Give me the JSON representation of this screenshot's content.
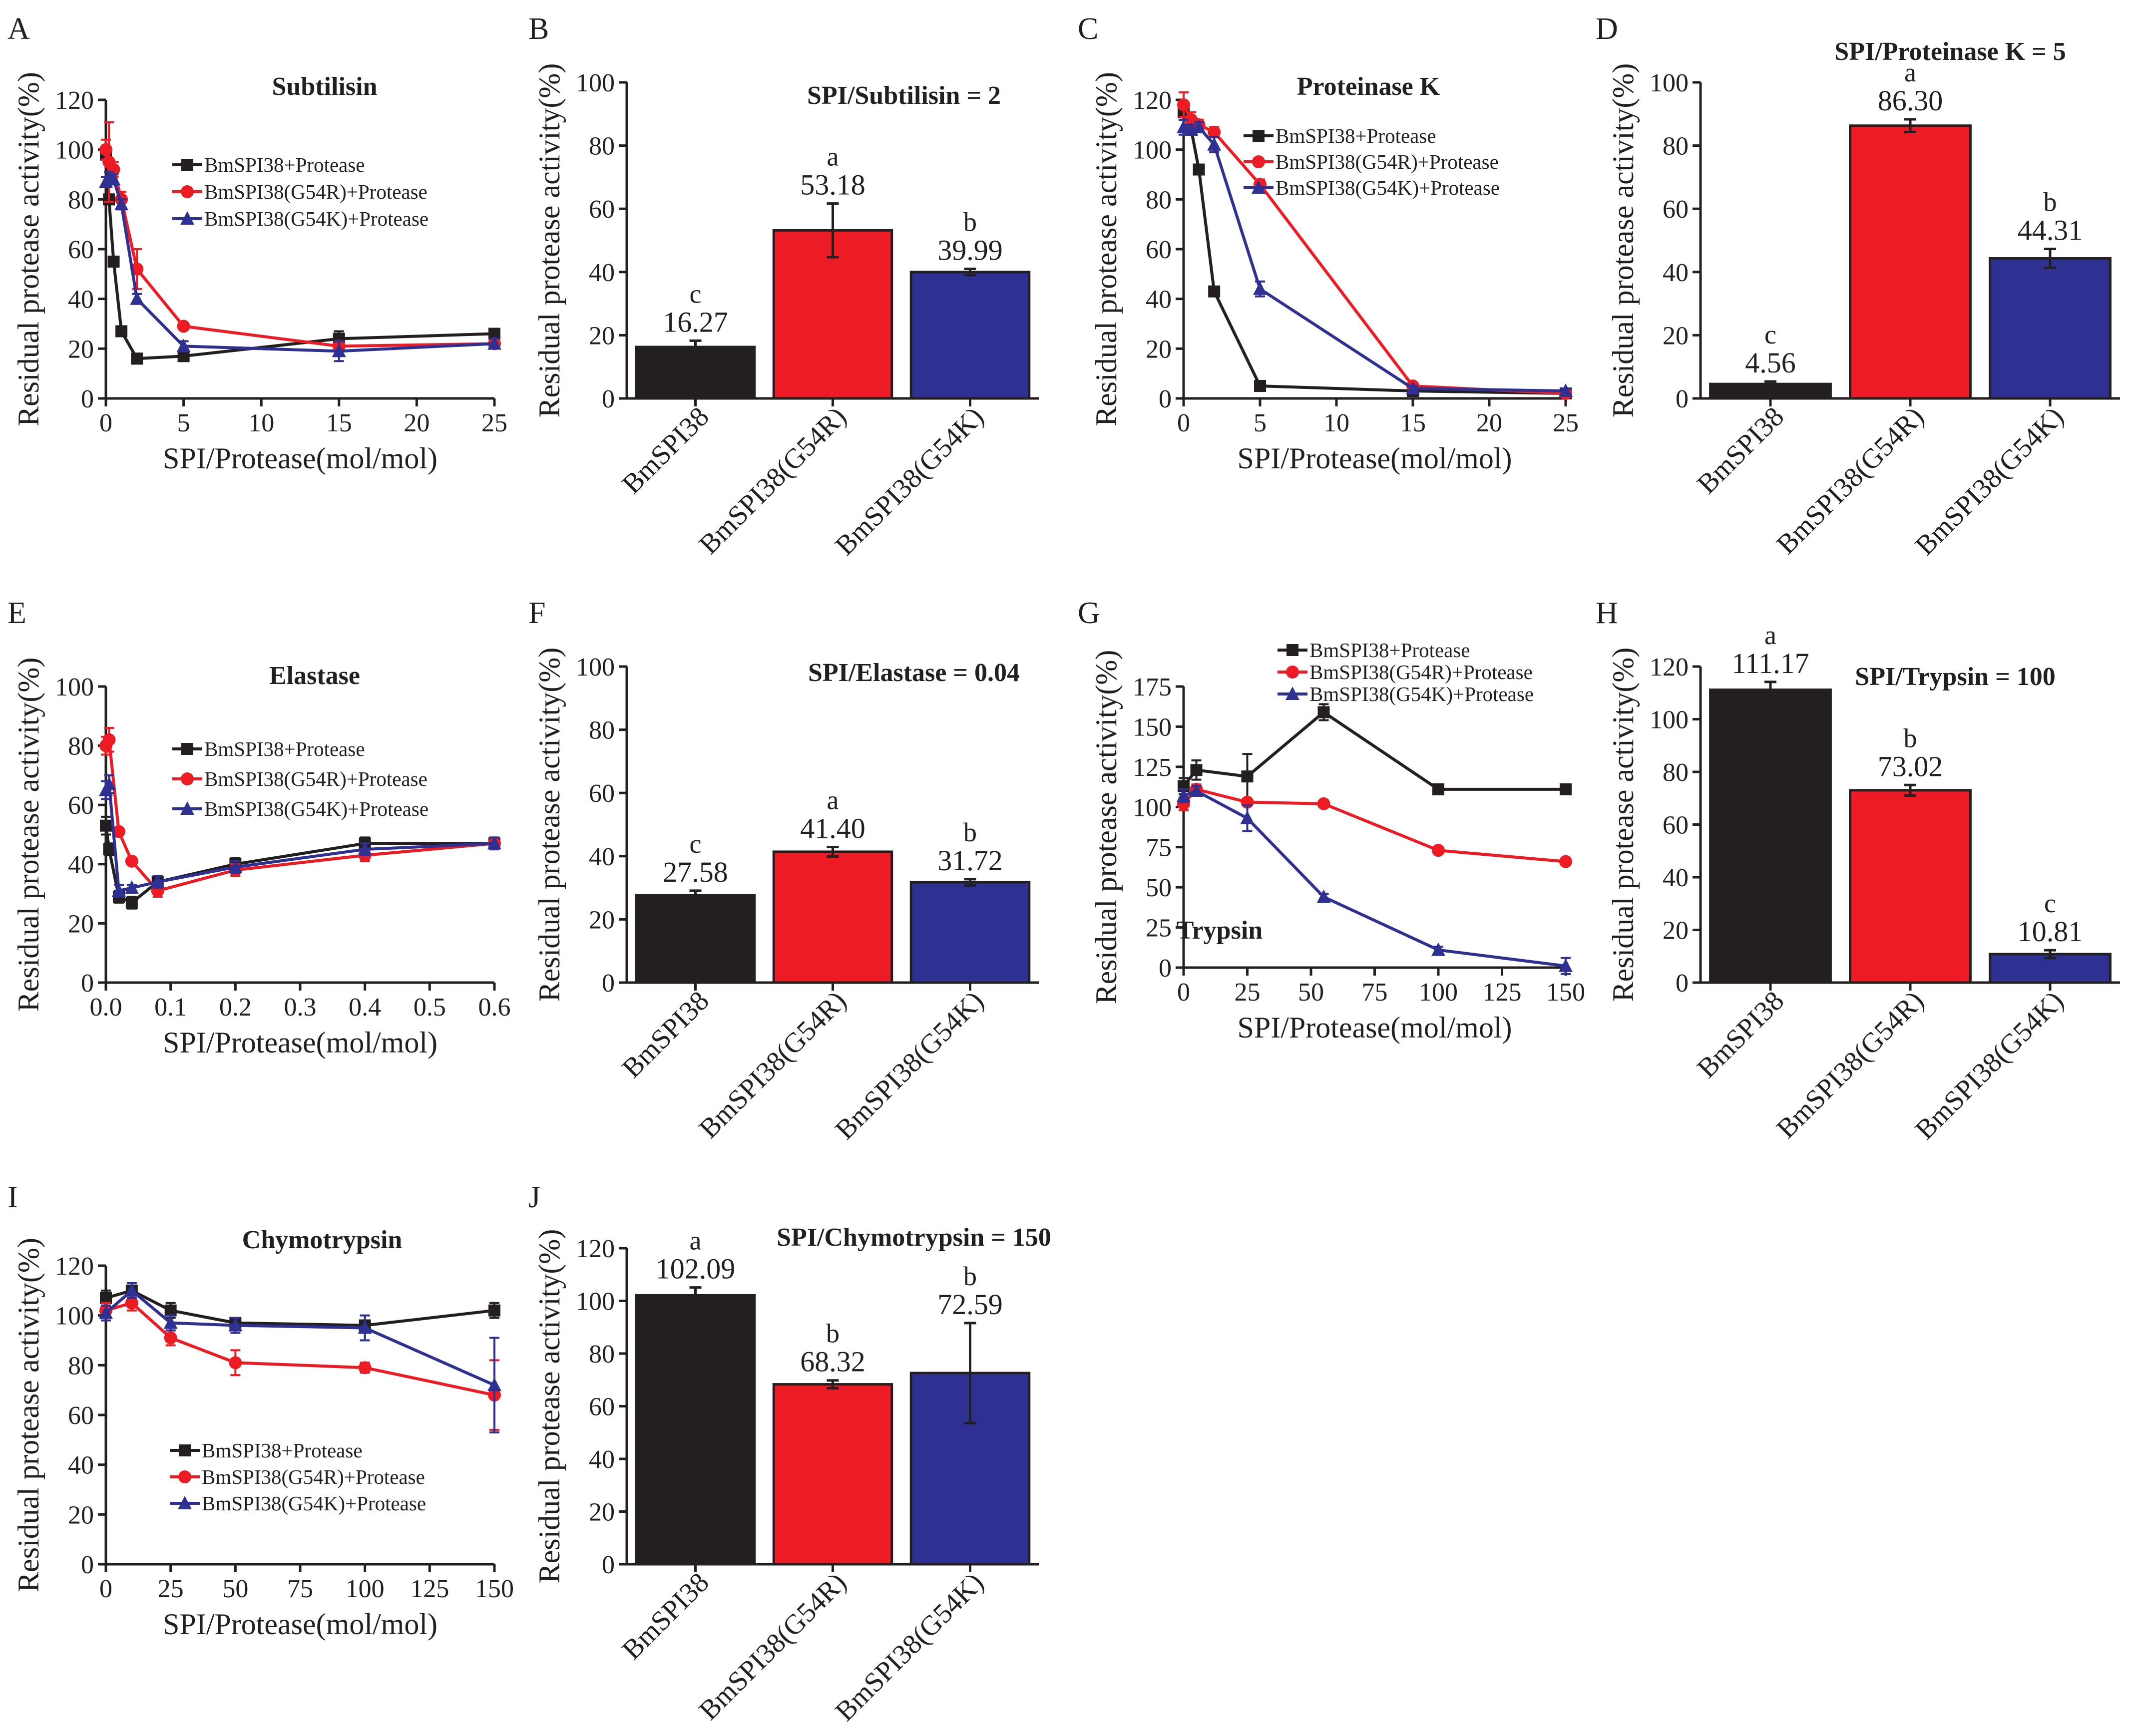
{
  "colors": {
    "black": "#231f20",
    "red": "#ed1c24",
    "blue": "#2e3192"
  },
  "legend": [
    "BmSPI38+Protease",
    "BmSPI38(G54R)+Protease",
    "BmSPI38(G54K)+Protease"
  ],
  "common": {
    "ylabel": "Residual protease activity(%)",
    "xlabel": "SPI/Protease(mol/mol)"
  },
  "chart_data": [
    {
      "panel": "A",
      "type": "line",
      "title": "Subtilisin",
      "xlabel": "SPI/Protease(mol/mol)",
      "ylabel": "Residual protease activity(%)",
      "xlim": [
        0,
        25
      ],
      "ylim": [
        0,
        120
      ],
      "xticks": [
        0,
        5,
        10,
        15,
        20,
        25
      ],
      "yticks": [
        0,
        20,
        40,
        60,
        80,
        100,
        120
      ],
      "series": [
        {
          "name": "BmSPI38+Protease",
          "x": [
            0,
            0.2,
            0.5,
            1,
            2,
            5,
            15,
            25
          ],
          "y": [
            98,
            80,
            55,
            27,
            16,
            17,
            24,
            26
          ],
          "err": [
            2,
            2,
            2,
            2,
            2,
            2,
            3,
            2
          ]
        },
        {
          "name": "BmSPI38(G54R)+Protease",
          "x": [
            0,
            0.2,
            0.5,
            1,
            2,
            5,
            15,
            25
          ],
          "y": [
            100,
            95,
            92,
            80,
            52,
            29,
            21,
            22
          ],
          "err": [
            4,
            16,
            3,
            3,
            8,
            1,
            2,
            2
          ]
        },
        {
          "name": "BmSPI38(G54K)+Protease",
          "x": [
            0,
            0.2,
            0.5,
            1,
            2,
            5,
            15,
            25
          ],
          "y": [
            87,
            89,
            88,
            78,
            40,
            21,
            19,
            22
          ],
          "err": [
            2,
            2,
            2,
            2,
            2,
            2,
            4,
            2
          ]
        }
      ]
    },
    {
      "panel": "B",
      "type": "bar",
      "title": "SPI/Subtilisin = 2",
      "ylabel": "Residual protease activity(%)",
      "ylim": [
        0,
        100
      ],
      "yticks": [
        0,
        20,
        40,
        60,
        80,
        100
      ],
      "categories": [
        "BmSPI38",
        "BmSPI38(G54R)",
        "BmSPI38(G54K)"
      ],
      "values": [
        16.27,
        53.18,
        39.99
      ],
      "labels": [
        "16.27",
        "53.18",
        "39.99"
      ],
      "letters": [
        "c",
        "a",
        "b"
      ],
      "errors": [
        2,
        8.5,
        1
      ]
    },
    {
      "panel": "C",
      "type": "line",
      "title": "Proteinase K",
      "xlabel": "SPI/Protease(mol/mol)",
      "ylabel": "Residual protease activity(%)",
      "xlim": [
        0,
        25
      ],
      "ylim": [
        0,
        120
      ],
      "xticks": [
        0,
        5,
        10,
        15,
        20,
        25
      ],
      "yticks": [
        0,
        20,
        40,
        60,
        80,
        100,
        120
      ],
      "series": [
        {
          "name": "BmSPI38+Protease",
          "x": [
            0,
            0.5,
            1,
            2,
            5,
            15,
            25
          ],
          "y": [
            115,
            108,
            92,
            43,
            5,
            3,
            2
          ],
          "err": [
            3,
            2,
            2,
            1,
            1,
            1,
            1
          ]
        },
        {
          "name": "BmSPI38(G54R)+Protease",
          "x": [
            0,
            0.5,
            1,
            2,
            5,
            15,
            25
          ],
          "y": [
            118,
            112,
            110,
            107,
            86,
            5,
            2
          ],
          "err": [
            5,
            3,
            2,
            2,
            2,
            1,
            1
          ]
        },
        {
          "name": "BmSPI38(G54K)+Protease",
          "x": [
            0,
            0.5,
            1,
            2,
            5,
            15,
            25
          ],
          "y": [
            109,
            108,
            109,
            102,
            44,
            4,
            3
          ],
          "err": [
            3,
            2,
            2,
            3,
            3,
            1,
            1
          ]
        }
      ]
    },
    {
      "panel": "D",
      "type": "bar",
      "title": "SPI/Proteinase K = 5",
      "ylabel": "Residual protease activity(%)",
      "ylim": [
        0,
        100
      ],
      "yticks": [
        0,
        20,
        40,
        60,
        80,
        100
      ],
      "categories": [
        "BmSPI38",
        "BmSPI38(G54R)",
        "BmSPI38(G54K)"
      ],
      "values": [
        4.56,
        86.3,
        44.31
      ],
      "labels": [
        "4.56",
        "86.30",
        "44.31"
      ],
      "letters": [
        "c",
        "a",
        "b"
      ],
      "errors": [
        0.8,
        2,
        3
      ]
    },
    {
      "panel": "E",
      "type": "line",
      "title": "Elastase",
      "xlabel": "SPI/Protease(mol/mol)",
      "ylabel": "Residual protease activity(%)",
      "xlim": [
        0,
        0.6
      ],
      "ylim": [
        0,
        100
      ],
      "xticks": [
        0,
        0.1,
        0.2,
        0.3,
        0.4,
        0.5,
        0.6
      ],
      "xticklabels": [
        "0.0",
        "0.1",
        "0.2",
        "0.3",
        "0.4",
        "0.5",
        "0.6"
      ],
      "yticks": [
        0,
        20,
        40,
        60,
        80,
        100
      ],
      "series": [
        {
          "name": "BmSPI38+Protease",
          "x": [
            0,
            0.005,
            0.02,
            0.04,
            0.08,
            0.2,
            0.4,
            0.6
          ],
          "y": [
            53,
            45,
            29,
            27,
            34,
            40,
            47,
            47
          ],
          "err": [
            3,
            2,
            2,
            2,
            2,
            2,
            2,
            1
          ]
        },
        {
          "name": "BmSPI38(G54R)+Protease",
          "x": [
            0,
            0.005,
            0.02,
            0.04,
            0.08,
            0.2,
            0.4,
            0.6
          ],
          "y": [
            80,
            82,
            51,
            41,
            31,
            38,
            43,
            47
          ],
          "err": [
            3,
            4,
            1,
            1,
            2,
            2,
            2,
            2
          ]
        },
        {
          "name": "BmSPI38(G54K)+Protease",
          "x": [
            0,
            0.005,
            0.02,
            0.04,
            0.08,
            0.2,
            0.4,
            0.6
          ],
          "y": [
            65,
            67,
            31,
            32,
            34,
            39,
            45,
            47
          ],
          "err": [
            3,
            3,
            2,
            1,
            2,
            2,
            2,
            2
          ]
        }
      ]
    },
    {
      "panel": "F",
      "type": "bar",
      "title": "SPI/Elastase = 0.04",
      "ylabel": "Residual protease activity(%)",
      "ylim": [
        0,
        100
      ],
      "yticks": [
        0,
        20,
        40,
        60,
        80,
        100
      ],
      "categories": [
        "BmSPI38",
        "BmSPI38(G54R)",
        "BmSPI38(G54K)"
      ],
      "values": [
        27.58,
        41.4,
        31.72
      ],
      "labels": [
        "27.58",
        "41.40",
        "31.72"
      ],
      "letters": [
        "c",
        "a",
        "b"
      ],
      "errors": [
        1.5,
        1.5,
        1
      ]
    },
    {
      "panel": "G",
      "type": "line",
      "title": "Trypsin",
      "xlabel": "SPI/Protease(mol/mol)",
      "ylabel": "Residual protease activity(%)",
      "xlim": [
        0,
        150
      ],
      "ylim": [
        0,
        175
      ],
      "xticks": [
        0,
        25,
        50,
        75,
        100,
        125,
        150
      ],
      "yticks": [
        0,
        25,
        50,
        75,
        100,
        125,
        150,
        175
      ],
      "series": [
        {
          "name": "BmSPI38+Protease",
          "x": [
            0,
            5,
            25,
            55,
            100,
            150
          ],
          "y": [
            113,
            123,
            119,
            159,
            111,
            111
          ],
          "err": [
            5,
            6,
            14,
            5,
            3,
            2
          ]
        },
        {
          "name": "BmSPI38(G54R)+Protease",
          "x": [
            0,
            5,
            25,
            55,
            100,
            150
          ],
          "y": [
            102,
            111,
            103,
            102,
            73,
            66
          ],
          "err": [
            4,
            3,
            2,
            2,
            2,
            2
          ]
        },
        {
          "name": "BmSPI38(G54K)+Protease",
          "x": [
            0,
            5,
            25,
            55,
            100,
            150
          ],
          "y": [
            107,
            110,
            93,
            44,
            11,
            1
          ],
          "err": [
            4,
            3,
            8,
            2,
            2,
            5
          ]
        }
      ]
    },
    {
      "panel": "H",
      "type": "bar",
      "title": "SPI/Trypsin = 100",
      "ylabel": "Residual protease activity(%)",
      "ylim": [
        0,
        120
      ],
      "yticks": [
        0,
        20,
        40,
        60,
        80,
        100,
        120
      ],
      "categories": [
        "BmSPI38",
        "BmSPI38(G54R)",
        "BmSPI38(G54K)"
      ],
      "values": [
        111.17,
        73.02,
        10.81
      ],
      "labels": [
        "111.17",
        "73.02",
        "10.81"
      ],
      "letters": [
        "a",
        "b",
        "c"
      ],
      "errors": [
        3,
        2,
        1.5
      ]
    },
    {
      "panel": "I",
      "type": "line",
      "title": "Chymotrypsin",
      "xlabel": "SPI/Protease(mol/mol)",
      "ylabel": "Residual protease activity(%)",
      "xlim": [
        0,
        150
      ],
      "ylim": [
        0,
        120
      ],
      "xticks": [
        0,
        25,
        50,
        75,
        100,
        125,
        150
      ],
      "yticks": [
        0,
        20,
        40,
        60,
        80,
        100,
        120
      ],
      "series": [
        {
          "name": "BmSPI38+Protease",
          "x": [
            0,
            10,
            25,
            50,
            100,
            150
          ],
          "y": [
            107,
            110,
            102,
            97,
            96,
            102
          ],
          "err": [
            3,
            2,
            3,
            2,
            2,
            3
          ]
        },
        {
          "name": "BmSPI38(G54R)+Protease",
          "x": [
            0,
            10,
            25,
            50,
            100,
            150
          ],
          "y": [
            102,
            105,
            91,
            81,
            79,
            68
          ],
          "err": [
            3,
            3,
            3,
            5,
            2,
            14
          ]
        },
        {
          "name": "BmSPI38(G54K)+Protease",
          "x": [
            0,
            10,
            25,
            50,
            100,
            150
          ],
          "y": [
            101,
            110,
            97,
            96,
            95,
            72
          ],
          "err": [
            3,
            3,
            3,
            3,
            5,
            19
          ]
        }
      ]
    },
    {
      "panel": "J",
      "type": "bar",
      "title": "SPI/Chymotrypsin = 150",
      "ylabel": "Residual protease activity(%)",
      "ylim": [
        0,
        120
      ],
      "yticks": [
        0,
        20,
        40,
        60,
        80,
        100,
        120
      ],
      "categories": [
        "BmSPI38",
        "BmSPI38(G54R)",
        "BmSPI38(G54K)"
      ],
      "values": [
        102.09,
        68.32,
        72.59
      ],
      "labels": [
        "102.09",
        "68.32",
        "72.59"
      ],
      "letters": [
        "a",
        "b",
        "b"
      ],
      "errors": [
        3,
        1.5,
        19
      ]
    }
  ]
}
